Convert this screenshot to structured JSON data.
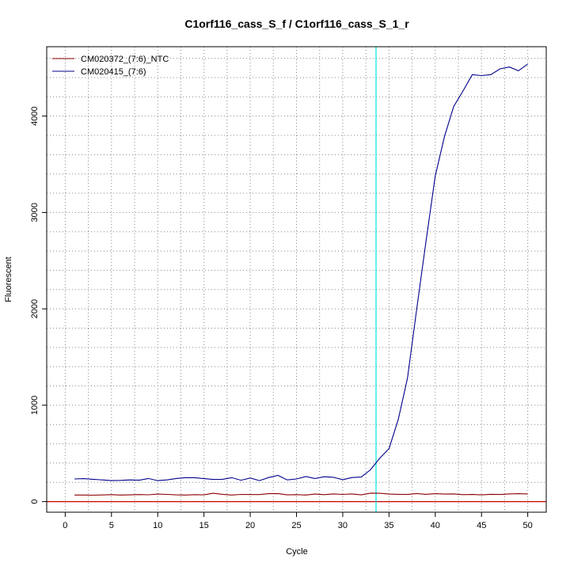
{
  "chart_data": {
    "type": "line",
    "title": "C1orf116_cass_S_f / C1orf116_cass_S_1_r",
    "xlabel": "Cycle",
    "ylabel": "Fluorescent",
    "xlim": [
      -2,
      52
    ],
    "ylim": [
      -110,
      4720
    ],
    "x_ticks": [
      0,
      5,
      10,
      15,
      20,
      25,
      30,
      35,
      40,
      45,
      50
    ],
    "x_tick_labels": [
      "0",
      "5",
      "10",
      "15",
      "20",
      "25",
      "30",
      "35",
      "40",
      "45",
      "50"
    ],
    "y_ticks": [
      0,
      1000,
      2000,
      3000,
      4000
    ],
    "y_tick_labels": [
      "0",
      "1000",
      "2000",
      "3000",
      "4000"
    ],
    "grid": true,
    "legend_position": "top-left",
    "threshold_y": 0,
    "threshold_color": "#cc0000",
    "cycle_marker_x": 33.6,
    "cycle_marker_color": "#00e5e5",
    "series": [
      {
        "name": "CM020372_(7:6)_NTC",
        "color": "#8b0000",
        "x": [
          1,
          2,
          3,
          4,
          5,
          6,
          7,
          8,
          9,
          10,
          11,
          12,
          13,
          14,
          15,
          16,
          17,
          18,
          19,
          20,
          21,
          22,
          23,
          24,
          25,
          26,
          27,
          28,
          29,
          30,
          31,
          32,
          33,
          34,
          35,
          36,
          37,
          38,
          39,
          40,
          41,
          42,
          43,
          44,
          45,
          46,
          47,
          48,
          49,
          50
        ],
        "values": [
          68,
          68,
          67,
          69,
          72,
          68,
          70,
          73,
          71,
          78,
          75,
          70,
          68,
          72,
          70,
          86,
          76,
          68,
          75,
          73,
          73,
          82,
          84,
          70,
          72,
          68,
          78,
          72,
          80,
          75,
          80,
          70,
          88,
          86,
          78,
          76,
          74,
          84,
          76,
          82,
          78,
          80,
          72,
          74,
          70,
          76,
          74,
          80,
          82,
          80
        ]
      },
      {
        "name": "CM020415_(7:6)",
        "color": "#00008b",
        "x": [
          1,
          2,
          3,
          4,
          5,
          6,
          7,
          8,
          9,
          10,
          11,
          12,
          13,
          14,
          15,
          16,
          17,
          18,
          19,
          20,
          21,
          22,
          23,
          24,
          25,
          26,
          27,
          28,
          29,
          30,
          31,
          32,
          33,
          34,
          35,
          36,
          37,
          38,
          39,
          40,
          41,
          42,
          43,
          44,
          45,
          46,
          47,
          48,
          49,
          50
        ],
        "values": [
          235,
          238,
          232,
          225,
          218,
          220,
          225,
          222,
          240,
          218,
          225,
          240,
          248,
          248,
          238,
          230,
          232,
          248,
          222,
          245,
          218,
          250,
          272,
          225,
          235,
          260,
          240,
          258,
          252,
          228,
          250,
          255,
          330,
          450,
          550,
          850,
          1280,
          2000,
          2700,
          3380,
          3790,
          4100,
          4260,
          4430,
          4420,
          4430,
          4490,
          4510,
          4470,
          4540
        ]
      }
    ]
  }
}
